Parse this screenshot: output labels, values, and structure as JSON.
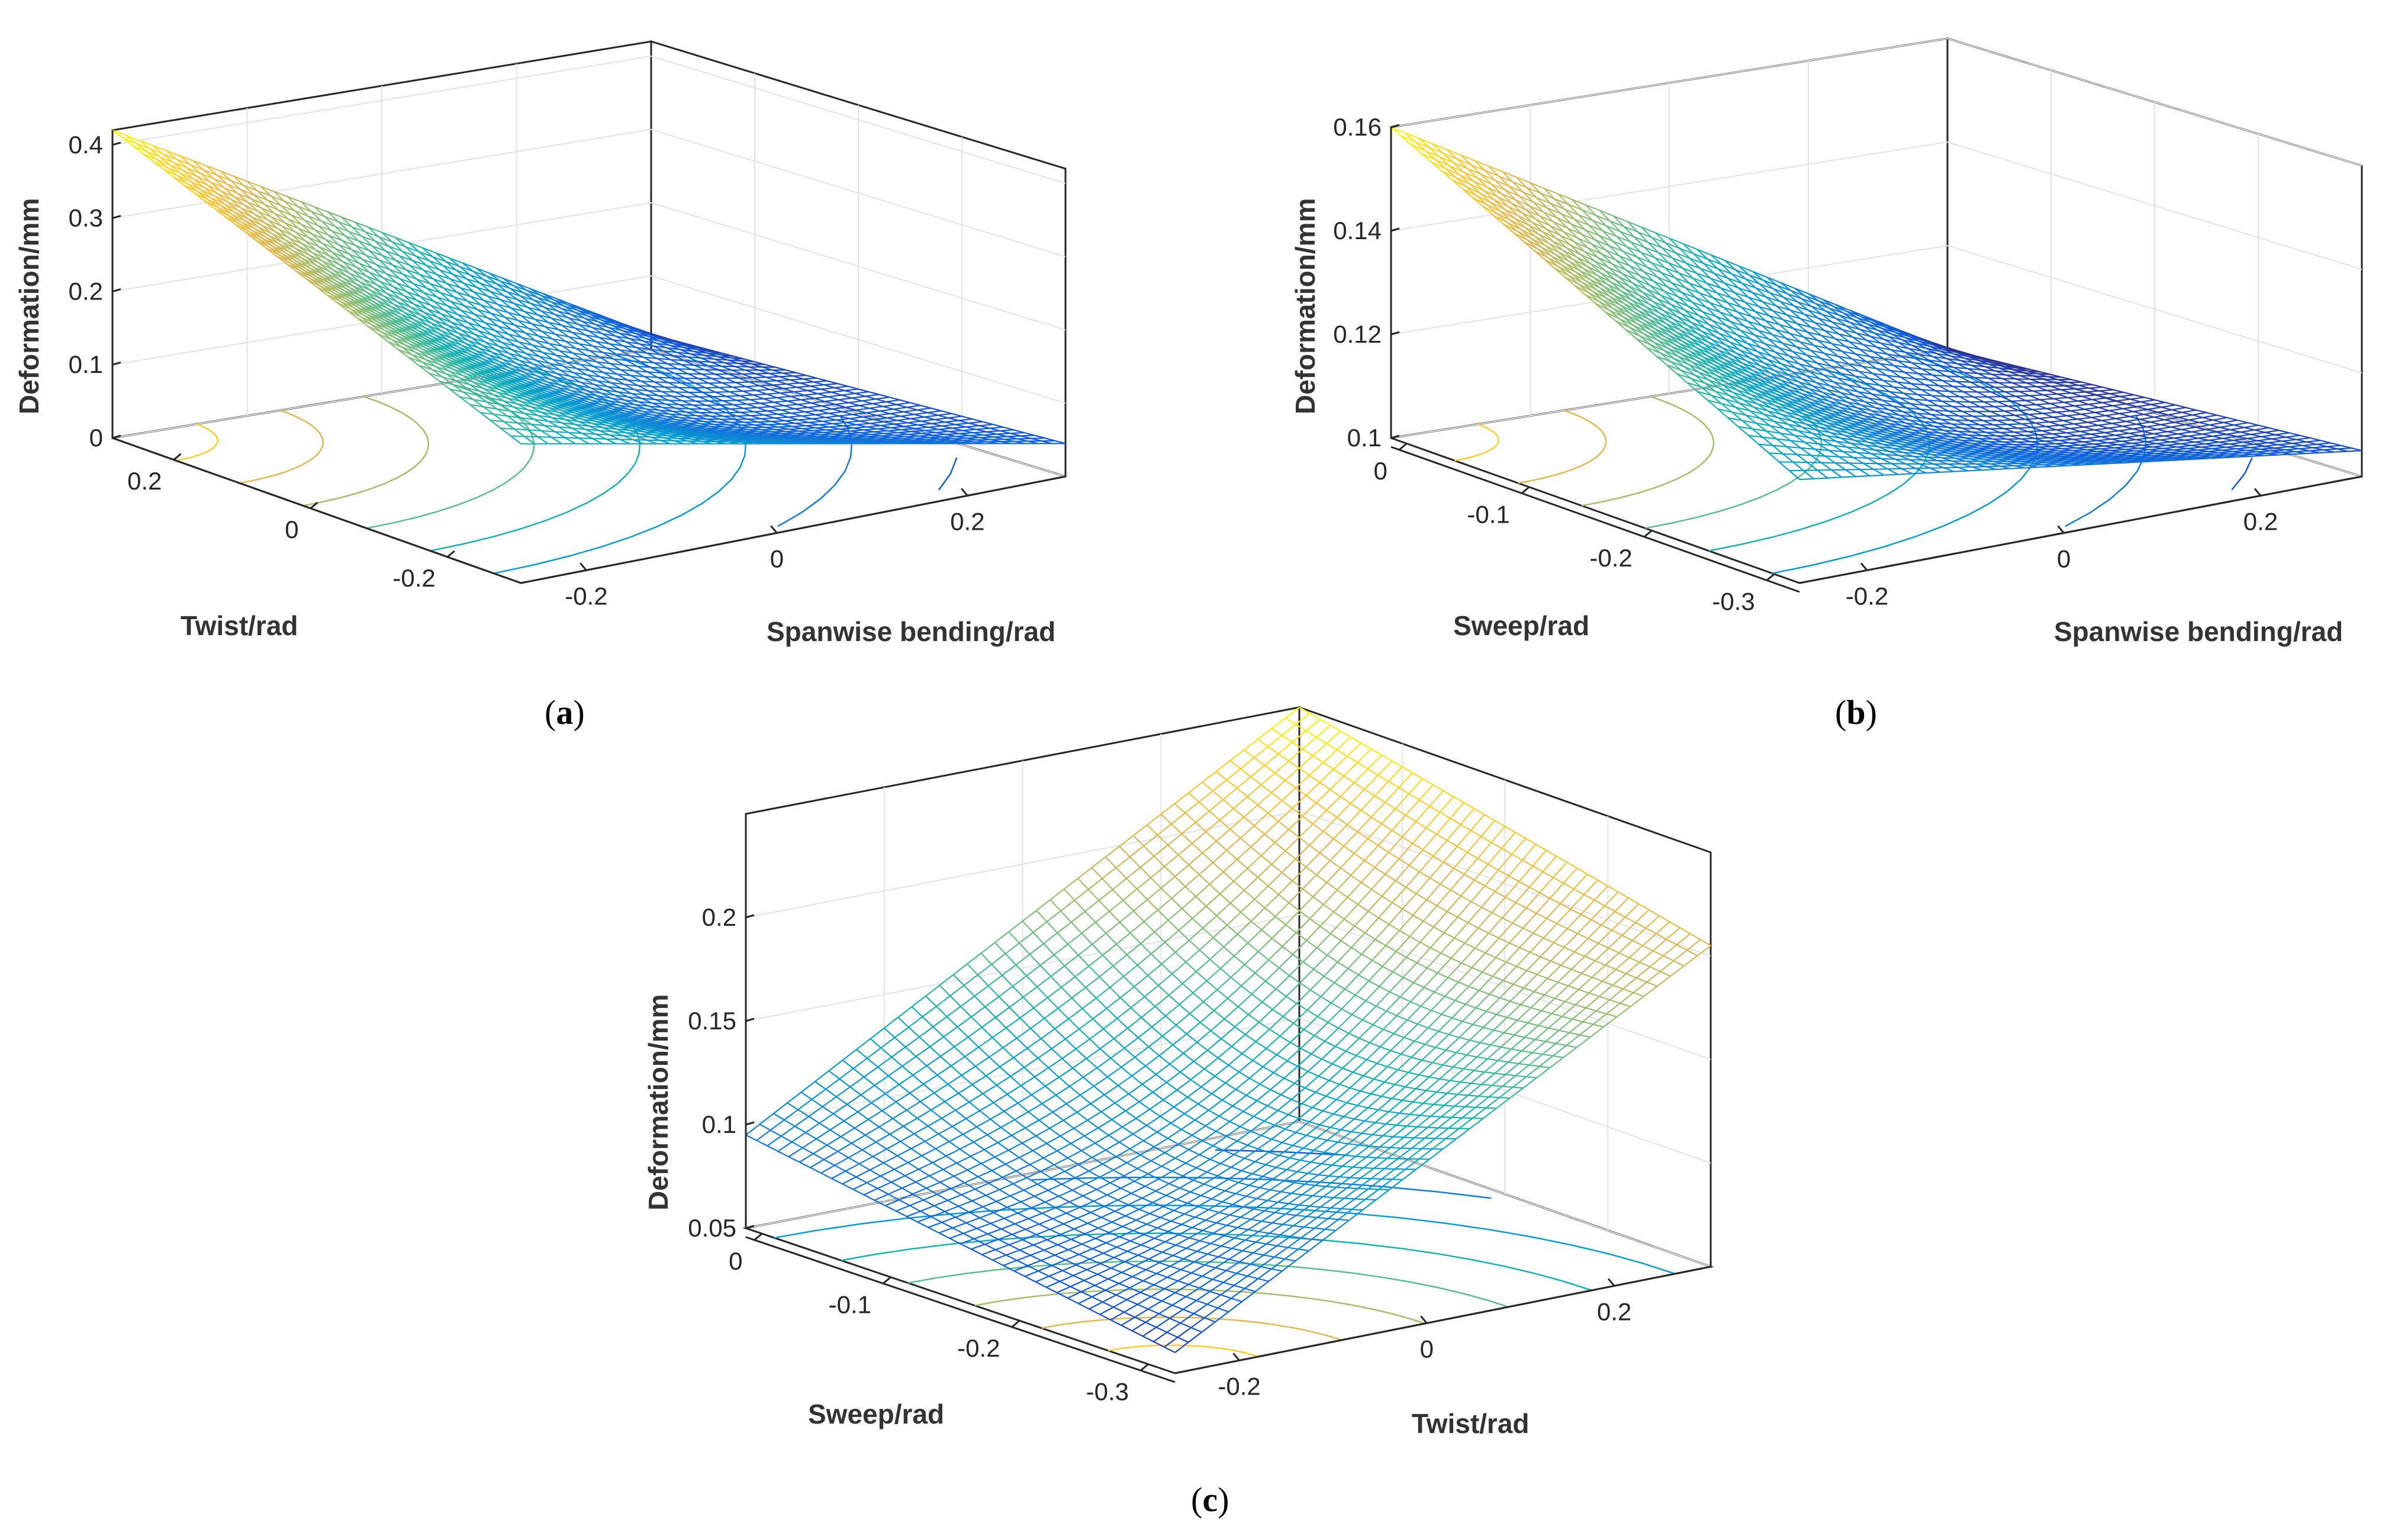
{
  "chart_data": [
    {
      "panel": "a",
      "type": "surface",
      "zlabel": "Deformation/mm",
      "xlabel": "Twist/rad",
      "ylabel": "Spanwise bending/rad",
      "zticks": [
        "0",
        "0.1",
        "0.2",
        "0.3",
        "0.4"
      ],
      "xticks": [
        "0.2",
        "0",
        "-0.2"
      ],
      "yticks": [
        "-0.2",
        "0",
        "0.2"
      ],
      "zlim": [
        0,
        0.42
      ],
      "corner_values": {
        "near_left": 0.42,
        "near_right": 0.19,
        "far_left": 0.02,
        "far_right": 0.045
      },
      "grid": true
    },
    {
      "panel": "b",
      "type": "surface",
      "zlabel": "Deformation/mm",
      "xlabel": "Sweep/rad",
      "ylabel": "Spanwise bending/rad",
      "zticks": [
        "0.1",
        "0.12",
        "0.14",
        "0.16"
      ],
      "xticks": [
        "0",
        "-0.1",
        "-0.2",
        "-0.3"
      ],
      "yticks": [
        "-0.2",
        "0",
        "0.2"
      ],
      "zlim": [
        0.1,
        0.16
      ],
      "corner_values": {
        "near_left": 0.16,
        "near_right": 0.12,
        "far_left": 0.1,
        "far_right": 0.105
      },
      "grid": true
    },
    {
      "panel": "c",
      "type": "surface",
      "zlabel": "Deformation/mm",
      "xlabel": "Sweep/rad",
      "ylabel": "Twist/rad",
      "zticks": [
        "0.05",
        "0.1",
        "0.15",
        "0.2"
      ],
      "xticks": [
        "0",
        "-0.1",
        "-0.2",
        "-0.3"
      ],
      "yticks": [
        "-0.2",
        "0",
        "0.2"
      ],
      "zlim": [
        0.05,
        0.25
      ],
      "corner_values": {
        "near_left": 0.095,
        "near_right": 0.06,
        "far_left": 0.25,
        "far_right": 0.205
      },
      "grid": true
    }
  ],
  "panel_labels": [
    {
      "id": "a",
      "open": "(",
      "letter": "a",
      "close": ")"
    },
    {
      "id": "b",
      "open": "(",
      "letter": "b",
      "close": ")"
    },
    {
      "id": "c",
      "open": "(",
      "letter": "c",
      "close": ")"
    }
  ]
}
